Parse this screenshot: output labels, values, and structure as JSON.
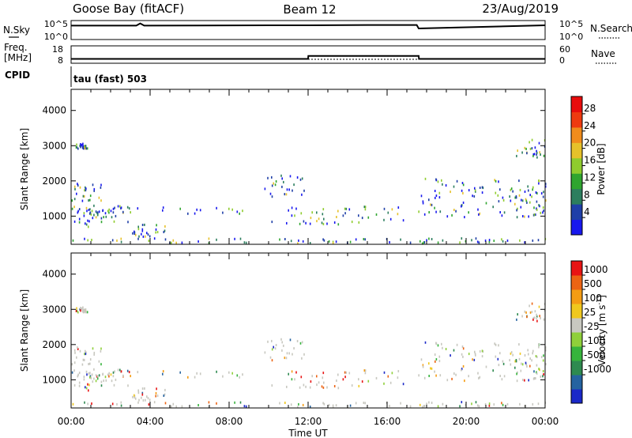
{
  "header": {
    "site": "Goose Bay (fitACF)",
    "beam": "Beam 12",
    "date": "23/Aug/2019"
  },
  "noise_panel": {
    "left_label": "N.Sky",
    "right_label": "N.Search",
    "left_ticks": [
      "10^5",
      "10^0"
    ],
    "right_ticks": [
      "10^5",
      "10^0"
    ]
  },
  "freq_panel": {
    "left_label_top": "Freq.",
    "left_label_bottom": "[MHz]",
    "right_label": "Nave",
    "left_ticks": [
      "18",
      "8"
    ],
    "right_ticks": [
      "60",
      "0"
    ]
  },
  "cpid_panel": {
    "label": "CPID",
    "mode": "tau (fast) 503"
  },
  "chart_data": [
    {
      "type": "line",
      "name": "noise",
      "x": [
        0,
        3.3,
        3.5,
        3.7,
        10,
        12,
        15,
        17.5,
        17.6,
        24
      ],
      "series": [
        {
          "name": "N.Sky",
          "values": [
            0.78,
            0.78,
            0.92,
            0.78,
            0.8,
            0.8,
            0.82,
            0.82,
            0.6,
            0.8
          ]
        }
      ]
    },
    {
      "type": "line",
      "name": "frequency",
      "x": [
        0,
        12,
        12.01,
        17.6,
        17.61,
        24
      ],
      "series": [
        {
          "name": "Freq",
          "values": [
            10.5,
            10.5,
            12.2,
            12.2,
            10.5,
            10.5
          ]
        }
      ]
    },
    {
      "type": "heatmap",
      "name": "power",
      "xlabel": "",
      "ylabel": "Slant Range [km]",
      "yticks": [
        "1000",
        "2000",
        "3000",
        "4000"
      ],
      "ylim": [
        200,
        4600
      ],
      "xlim": [
        0,
        24
      ],
      "colorbar": {
        "label": "Power [dB]",
        "ticks": [
          "4",
          "8",
          "12",
          "16",
          "20",
          "24",
          "28"
        ],
        "colors": [
          "#1818ee",
          "#1f3fa8",
          "#2c7e5e",
          "#2fa52f",
          "#8fcc2e",
          "#e6c12a",
          "#f08c1c",
          "#ee3a10",
          "#e80c0c"
        ]
      }
    },
    {
      "type": "heatmap",
      "name": "velocity",
      "xlabel": "Time UT",
      "ylabel": "Slant Range [km]",
      "xticks": [
        "00:00",
        "04:00",
        "08:00",
        "12:00",
        "16:00",
        "20:00",
        "00:00"
      ],
      "yticks": [
        "1000",
        "2000",
        "3000",
        "4000"
      ],
      "ylim": [
        200,
        4600
      ],
      "xlim": [
        0,
        24
      ],
      "colorbar": {
        "label": "Velocity [m s",
        "label_sup": "-1",
        "label_end": "]",
        "ticks": [
          "1000",
          "500",
          "100",
          "25",
          "-25",
          "-100",
          "-500",
          "-1000"
        ],
        "colors": [
          "#1a28c8",
          "#2563a0",
          "#2e8a50",
          "#36b43c",
          "#8fd03a",
          "#c8c8c0",
          "#f0c81e",
          "#f49c14",
          "#ec6414",
          "#e81414"
        ]
      }
    }
  ],
  "scatter_regions": [
    {
      "t0": 0.0,
      "t1": 1.6,
      "r0": 1450,
      "r1": 1950
    },
    {
      "t0": 0.0,
      "t1": 1.2,
      "r0": 700,
      "r1": 1300
    },
    {
      "t0": 0.2,
      "t1": 0.8,
      "r0": 2950,
      "r1": 3100
    },
    {
      "t0": 1.0,
      "t1": 3.0,
      "r0": 850,
      "r1": 1350
    },
    {
      "t0": 3.0,
      "t1": 4.8,
      "r0": 420,
      "r1": 800
    },
    {
      "t0": 0.0,
      "t1": 9.5,
      "r0": 250,
      "r1": 400
    },
    {
      "t0": 1.5,
      "t1": 10,
      "r0": 1100,
      "r1": 1300
    },
    {
      "t0": 9.6,
      "t1": 11.8,
      "r0": 1500,
      "r1": 2200
    },
    {
      "t0": 9.5,
      "t1": 18,
      "r0": 250,
      "r1": 400
    },
    {
      "t0": 10,
      "t1": 17,
      "r0": 800,
      "r1": 1300
    },
    {
      "t0": 17.5,
      "t1": 24,
      "r0": 1000,
      "r1": 2100
    },
    {
      "t0": 17.5,
      "t1": 24,
      "r0": 250,
      "r1": 400
    },
    {
      "t0": 22.5,
      "t1": 24,
      "r0": 2700,
      "r1": 3200
    },
    {
      "t0": 22.5,
      "t1": 24,
      "r0": 1000,
      "r1": 1800
    }
  ]
}
